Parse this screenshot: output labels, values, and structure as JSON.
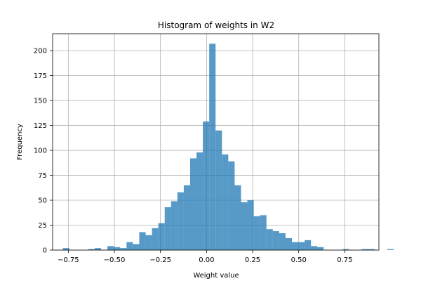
{
  "chart_data": {
    "type": "bar",
    "title": "Histogram of weights in W2",
    "xlabel": "Weight value",
    "ylabel": "Frequency",
    "xlim": [
      -0.835,
      0.935
    ],
    "ylim": [
      0,
      217
    ],
    "grid": true,
    "color": "#1f77b4",
    "bin_width": 0.0345,
    "bin_edges_start": -0.779,
    "x_ticks": [
      -0.75,
      -0.5,
      -0.25,
      0.0,
      0.25,
      0.5,
      0.75
    ],
    "x_tick_labels": [
      "−0.75",
      "−0.50",
      "−0.25",
      "0.00",
      "0.25",
      "0.50",
      "0.75"
    ],
    "y_ticks": [
      0,
      25,
      50,
      75,
      100,
      125,
      150,
      175,
      200
    ],
    "y_tick_labels": [
      "0",
      "25",
      "50",
      "75",
      "100",
      "125",
      "150",
      "175",
      "200"
    ],
    "values": [
      2,
      0,
      0,
      0,
      1,
      2,
      0,
      4,
      3,
      2,
      8,
      6,
      18,
      15,
      22,
      27,
      43,
      49,
      58,
      65,
      92,
      98,
      129,
      207,
      120,
      96,
      89,
      65,
      48,
      50,
      34,
      35,
      21,
      19,
      17,
      12,
      8,
      8,
      10,
      4,
      3,
      0,
      0,
      0,
      1,
      0,
      0,
      1,
      1,
      0,
      0,
      1
    ]
  }
}
